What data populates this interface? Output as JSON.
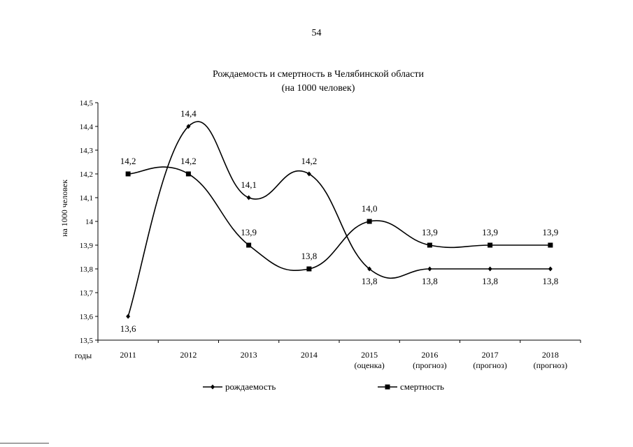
{
  "page_number": "54",
  "chart_data": {
    "type": "line",
    "title": "Рождаемость и смертность в Челябинской области",
    "subtitle": "(на 1000 человек)",
    "ylabel": "на 1000 человек",
    "xlabel": "годы",
    "ylim": [
      13.5,
      14.5
    ],
    "y_ticks": [
      "13,5",
      "13,6",
      "13,7",
      "13,8",
      "13,9",
      "14",
      "14,1",
      "14,2",
      "14,3",
      "14,4",
      "14,5"
    ],
    "categories": [
      {
        "year": "2011",
        "note": ""
      },
      {
        "year": "2012",
        "note": ""
      },
      {
        "year": "2013",
        "note": ""
      },
      {
        "year": "2014",
        "note": ""
      },
      {
        "year": "2015",
        "note": "(оценка)"
      },
      {
        "year": "2016",
        "note": "(прогноз)"
      },
      {
        "year": "2017",
        "note": "(прогноз)"
      },
      {
        "year": "2018",
        "note": "(прогноз)"
      }
    ],
    "series": [
      {
        "name": "рождаемость",
        "marker": "diamond",
        "values": [
          13.6,
          14.4,
          14.1,
          14.2,
          13.8,
          13.8,
          13.8,
          13.8
        ],
        "labels": [
          "13,6",
          "14,4",
          "14,1",
          "14,2",
          "13,8",
          "13,8",
          "13,8",
          "13,8"
        ],
        "label_side": [
          "below",
          "above",
          "above",
          "above",
          "below",
          "below",
          "below",
          "below"
        ]
      },
      {
        "name": "смертность",
        "marker": "square",
        "values": [
          14.2,
          14.2,
          13.9,
          13.8,
          14.0,
          13.9,
          13.9,
          13.9
        ],
        "labels": [
          "14,2",
          "14,2",
          "13,9",
          "13,8",
          "14,0",
          "13,9",
          "13,9",
          "13,9"
        ],
        "label_side": [
          "above",
          "above",
          "above",
          "above",
          "above",
          "above",
          "above",
          "above"
        ]
      }
    ],
    "legend_position": "bottom",
    "grid": false
  }
}
